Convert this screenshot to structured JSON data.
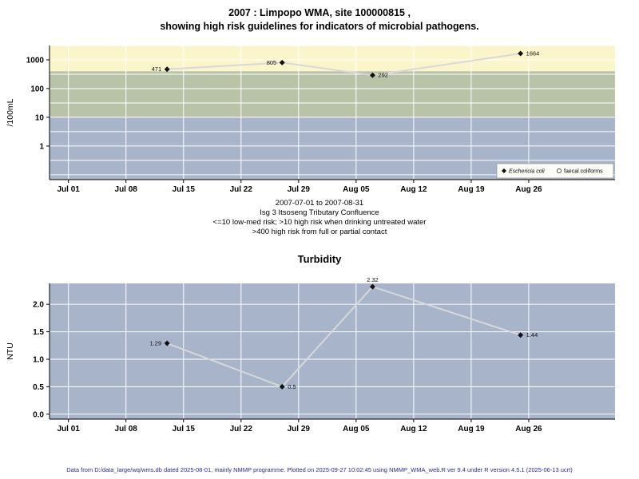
{
  "footer": {
    "text": "Data from D:/data_large/wq/wms.db dated 2025-08-01, mainly NMMP programme. Plotted on 2025-09-27 10:02:45 using NMMP_WMA_web.R ver 9.4 under R version 4.5.1 (2025-06-13 ucrt)",
    "color": "#2a2a8c"
  },
  "chart_data": [
    {
      "type": "line",
      "title_lines": [
        "2007 : Limpopo WMA, site 100000815 ,",
        "showing high risk guidelines for indicators of microbial pathogens."
      ],
      "ylabel": "/100mL",
      "yscale": "log",
      "yticks": [
        1,
        10,
        100,
        1000
      ],
      "ytick_labels": [
        "1",
        "10",
        "100",
        "1000"
      ],
      "ylim_log10": [
        -1.17,
        3.5
      ],
      "x_unit": "days since 2007-07-01",
      "xlim_days": [
        -2.3,
        66.5
      ],
      "x_ticks": {
        "labels": [
          "Jul 01",
          "Jul 08",
          "Jul 15",
          "Jul 22",
          "Jul 29",
          "Aug 05",
          "Aug 12",
          "Aug 19",
          "Aug 26"
        ],
        "days": [
          0,
          7,
          14,
          21,
          28,
          35,
          42,
          49,
          56
        ]
      },
      "bands": [
        {
          "min": 400,
          "max": null,
          "color": "#fbf5cb",
          "meaning": ">400 high risk from full or partial contact"
        },
        {
          "min": 10,
          "max": 400,
          "color": "#b8c3a7",
          "meaning": ">10 high risk when drinking untreated water"
        },
        {
          "min": null,
          "max": 10,
          "color": "#a7b4c9",
          "meaning": "<=10 low-med risk"
        }
      ],
      "line_color": "#d8d8d8",
      "marker_color": "#111111",
      "series": [
        {
          "name": "Eschericia coli",
          "marker": "diamond-filled",
          "points": [
            {
              "day": 12,
              "value": 471,
              "label": "471",
              "label_side": "left"
            },
            {
              "day": 26,
              "value": 805,
              "label": "805",
              "label_side": "left"
            },
            {
              "day": 37,
              "value": 292,
              "label": "292",
              "label_side": "right"
            },
            {
              "day": 55,
              "value": 1664,
              "label": "1664",
              "label_side": "right"
            }
          ]
        },
        {
          "name": "faecal coliforms",
          "marker": "circle-open",
          "points": []
        }
      ],
      "legend": [
        {
          "label": "Eschericia coli",
          "marker": "diamond-filled",
          "italic": true
        },
        {
          "label": "faecal coliforms",
          "marker": "circle-open",
          "italic": false
        }
      ],
      "caption_lines": [
        "2007-07-01 to 2007-08-31",
        "Isg 3 Itsoseng Tributary Confluence",
        "<=10 low-med risk; >10 high risk when drinking untreated water",
        ">400 high risk from full or partial contact"
      ]
    },
    {
      "type": "line",
      "title": "Turbidity",
      "ylabel": "NTU",
      "yscale": "linear",
      "yticks": [
        0,
        0.5,
        1,
        1.5,
        2
      ],
      "ytick_labels": [
        "0.0",
        "0.5",
        "1.0",
        "1.5",
        "2.0"
      ],
      "ylim": [
        -0.09,
        2.38
      ],
      "x_unit": "days since 2007-07-01",
      "xlim_days": [
        -2.3,
        66.5
      ],
      "x_ticks": {
        "labels": [
          "Jul 01",
          "Jul 08",
          "Jul 15",
          "Jul 22",
          "Jul 29",
          "Aug 05",
          "Aug 12",
          "Aug 19",
          "Aug 26"
        ],
        "days": [
          0,
          7,
          14,
          21,
          28,
          35,
          42,
          49,
          56
        ]
      },
      "panel_color": "#a7b4c9",
      "line_color": "#d8d8d8",
      "marker_color": "#111111",
      "series": [
        {
          "name": "Turbidity",
          "marker": "diamond-filled",
          "points": [
            {
              "day": 12,
              "value": 1.29,
              "label": "1.29",
              "label_side": "left"
            },
            {
              "day": 26,
              "value": 0.5,
              "label": "0.5",
              "label_side": "right"
            },
            {
              "day": 37,
              "value": 2.32,
              "label": "2.32",
              "label_side": "above"
            },
            {
              "day": 55,
              "value": 1.44,
              "label": "1.44",
              "label_side": "right"
            }
          ]
        }
      ]
    }
  ]
}
